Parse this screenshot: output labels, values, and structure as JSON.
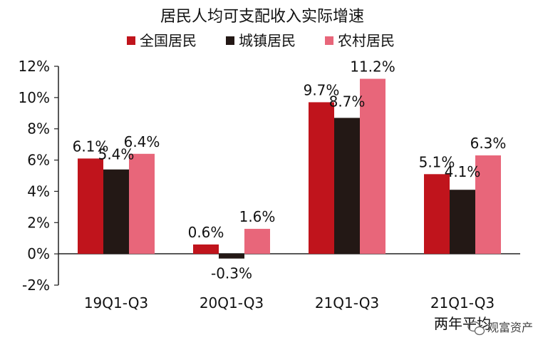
{
  "chart_data": {
    "type": "bar",
    "title": "居民人均可支配收入实际增速",
    "categories": [
      "19Q1-Q3",
      "20Q1-Q3",
      "21Q1-Q3",
      "21Q1-Q3"
    ],
    "category_sublabels": [
      "",
      "",
      "",
      "两年平均"
    ],
    "series": [
      {
        "name": "全国居民",
        "color": "#c0141c",
        "values": [
          6.1,
          0.6,
          9.7,
          5.1
        ],
        "labels": [
          "6.1%",
          "0.6%",
          "9.7%",
          "5.1%"
        ]
      },
      {
        "name": "城镇居民",
        "color": "#231815",
        "values": [
          5.4,
          -0.3,
          8.7,
          4.1
        ],
        "labels": [
          "5.4%",
          "-0.3%",
          "8.7%",
          "4.1%"
        ]
      },
      {
        "name": "农村居民",
        "color": "#e8667a",
        "values": [
          6.4,
          1.6,
          11.2,
          6.3
        ],
        "labels": [
          "6.4%",
          "1.6%",
          "11.2%",
          "6.3%"
        ]
      }
    ],
    "y_ticks": [
      "12%",
      "10%",
      "8%",
      "6%",
      "4%",
      "2%",
      "0%",
      "-2%"
    ],
    "y_tick_values": [
      12,
      10,
      8,
      6,
      4,
      2,
      0,
      -2
    ],
    "ylim": [
      -2,
      12
    ],
    "grid": false,
    "legend_position": "top"
  },
  "watermark": {
    "icon": "wechat-icon",
    "text": "观富资产"
  }
}
